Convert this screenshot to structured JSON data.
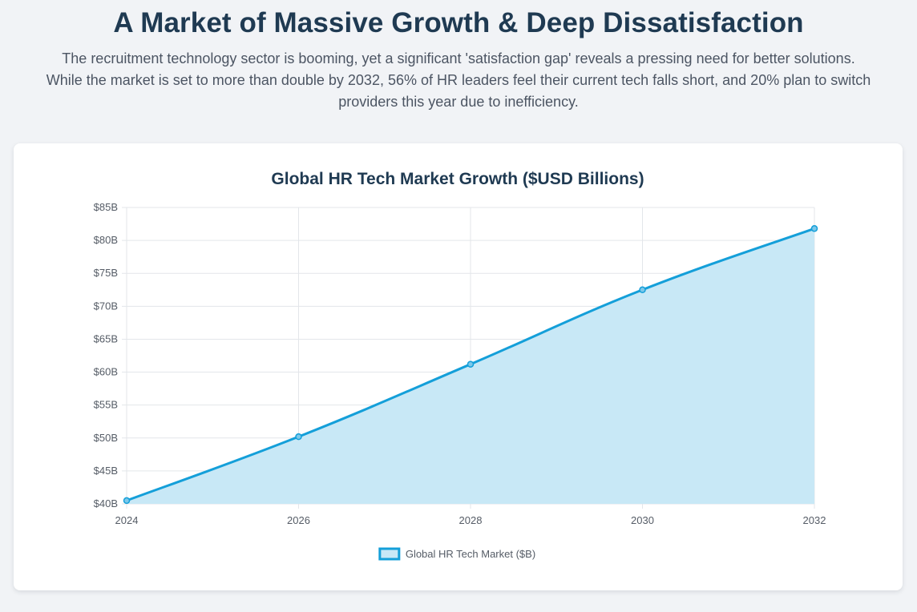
{
  "header": {
    "title": "A Market of Massive Growth & Deep Dissatisfaction",
    "subtitle": "The recruitment technology sector is booming, yet a significant 'satisfaction gap' reveals a pressing need for better solutions. While the market is set to more than double by 2032, 56% of HR leaders feel their current tech falls short, and 20% plan to switch providers this year due to inefficiency."
  },
  "colors": {
    "line": "#149fd9",
    "fill": "#c8e8f6",
    "title": "#1f3a52",
    "grid": "#e3e6ea"
  },
  "chart_data": {
    "type": "area",
    "title": "Global HR Tech Market Growth ($USD Billions)",
    "xlabel": "",
    "ylabel": "",
    "x": [
      2024,
      2026,
      2028,
      2030,
      2032
    ],
    "x_ticks": [
      "2024",
      "2026",
      "2028",
      "2030",
      "2032"
    ],
    "y_ticks": [
      "$40B",
      "$45B",
      "$50B",
      "$55B",
      "$60B",
      "$65B",
      "$70B",
      "$75B",
      "$80B",
      "$85B"
    ],
    "ylim": [
      40,
      85
    ],
    "grid": true,
    "legend_position": "bottom",
    "series": [
      {
        "name": "Global HR Tech Market ($B)",
        "values": [
          40.5,
          50.2,
          61.2,
          72.5,
          81.8
        ]
      }
    ]
  }
}
